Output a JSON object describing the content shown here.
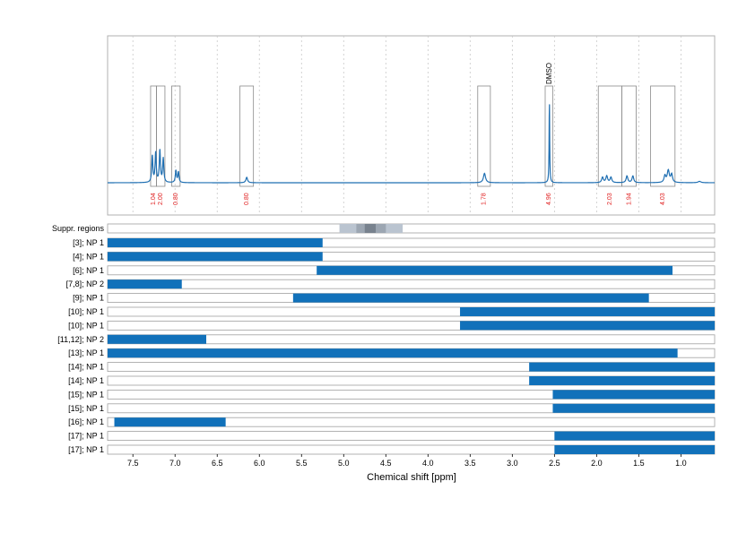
{
  "chart_data": {
    "type": "nmr-spectrum-with-interval-bars",
    "xlabel": "Chemical shift [ppm]",
    "x_reversed": true,
    "xlim": [
      7.8,
      0.6
    ],
    "xticks": [
      7.5,
      7.0,
      6.5,
      6.0,
      5.5,
      5.0,
      4.5,
      4.0,
      3.5,
      3.0,
      2.5,
      2.0,
      1.5,
      1.0
    ],
    "xtick_labels": [
      "7.5",
      "7.0",
      "6.5",
      "6.0",
      "5.5",
      "5.0",
      "4.5",
      "4.0",
      "3.5",
      "3.0",
      "2.5",
      "2.0",
      "1.5",
      "1.0"
    ],
    "grid": "vertical dotted",
    "spectrum": {
      "color": "#1f6fb2",
      "peaks": [
        {
          "ppm": 7.27,
          "height": 0.2,
          "width": 0.008
        },
        {
          "ppm": 7.23,
          "height": 0.22,
          "width": 0.008
        },
        {
          "ppm": 7.18,
          "height": 0.24,
          "width": 0.008
        },
        {
          "ppm": 7.14,
          "height": 0.18,
          "width": 0.008
        },
        {
          "ppm": 6.99,
          "height": 0.09,
          "width": 0.008
        },
        {
          "ppm": 6.96,
          "height": 0.08,
          "width": 0.008
        },
        {
          "ppm": 6.15,
          "height": 0.04,
          "width": 0.012
        },
        {
          "ppm": 3.33,
          "height": 0.07,
          "width": 0.015
        },
        {
          "ppm": 2.56,
          "height": 0.62,
          "width": 0.004
        },
        {
          "ppm": 1.93,
          "height": 0.04,
          "width": 0.012
        },
        {
          "ppm": 1.88,
          "height": 0.05,
          "width": 0.012
        },
        {
          "ppm": 1.83,
          "height": 0.04,
          "width": 0.012
        },
        {
          "ppm": 1.64,
          "height": 0.05,
          "width": 0.012
        },
        {
          "ppm": 1.57,
          "height": 0.05,
          "width": 0.012
        },
        {
          "ppm": 1.19,
          "height": 0.05,
          "width": 0.012
        },
        {
          "ppm": 1.15,
          "height": 0.09,
          "width": 0.015
        },
        {
          "ppm": 1.11,
          "height": 0.06,
          "width": 0.012
        },
        {
          "ppm": 0.78,
          "height": 0.01,
          "width": 0.02
        }
      ]
    },
    "integration_regions": [
      {
        "from": 7.29,
        "to": 7.22,
        "label": "1.04"
      },
      {
        "from": 7.22,
        "to": 7.12,
        "label": "2.00"
      },
      {
        "from": 7.04,
        "to": 6.94,
        "label": "0.80"
      },
      {
        "from": 6.23,
        "to": 6.07,
        "label": "0.80"
      },
      {
        "from": 3.41,
        "to": 3.26,
        "label": "1.78"
      },
      {
        "from": 2.61,
        "to": 2.52,
        "label": "4.96"
      },
      {
        "from": 1.98,
        "to": 1.7,
        "label": "2.03"
      },
      {
        "from": 1.7,
        "to": 1.53,
        "label": "1.94"
      },
      {
        "from": 1.36,
        "to": 1.07,
        "label": "4.03"
      }
    ],
    "annotation": {
      "text": "DMSO",
      "ppm": 2.56
    },
    "integration_label_color": "#e02020",
    "suppr_regions": {
      "label": "Suppr. regions",
      "bands": [
        {
          "from": 5.05,
          "to": 4.3,
          "level": 0.2
        },
        {
          "from": 4.85,
          "to": 4.5,
          "level": 0.45
        },
        {
          "from": 4.75,
          "to": 4.62,
          "level": 0.75
        }
      ]
    },
    "bar_color": "#1171ba",
    "rows": [
      {
        "label": "[3]; NP 1",
        "from": 7.8,
        "to": 5.25
      },
      {
        "label": "[4]; NP 1",
        "from": 7.8,
        "to": 5.25
      },
      {
        "label": "[6]; NP 1",
        "from": 5.32,
        "to": 1.1
      },
      {
        "label": "[7,8]; NP 2",
        "from": 7.8,
        "to": 6.92
      },
      {
        "label": "[9]; NP 1",
        "from": 5.6,
        "to": 1.38
      },
      {
        "label": "[10]; NP 1",
        "from": 3.62,
        "to": 0.6
      },
      {
        "label": "[10]; NP 1",
        "from": 3.62,
        "to": 0.6
      },
      {
        "label": "[11,12]; NP 2",
        "from": 7.8,
        "to": 6.63
      },
      {
        "label": "[13]; NP 1",
        "from": 7.8,
        "to": 1.04
      },
      {
        "label": "[14]; NP 1",
        "from": 2.8,
        "to": 0.6
      },
      {
        "label": "[14]; NP 1",
        "from": 2.8,
        "to": 0.6
      },
      {
        "label": "[15]; NP 1",
        "from": 2.52,
        "to": 0.6
      },
      {
        "label": "[15]; NP 1",
        "from": 2.52,
        "to": 0.6
      },
      {
        "label": "[16]; NP 1",
        "from": 7.72,
        "to": 6.4
      },
      {
        "label": "[17]; NP 1",
        "from": 2.5,
        "to": 0.6
      },
      {
        "label": "[17]; NP 1",
        "from": 2.5,
        "to": 0.6
      }
    ]
  }
}
